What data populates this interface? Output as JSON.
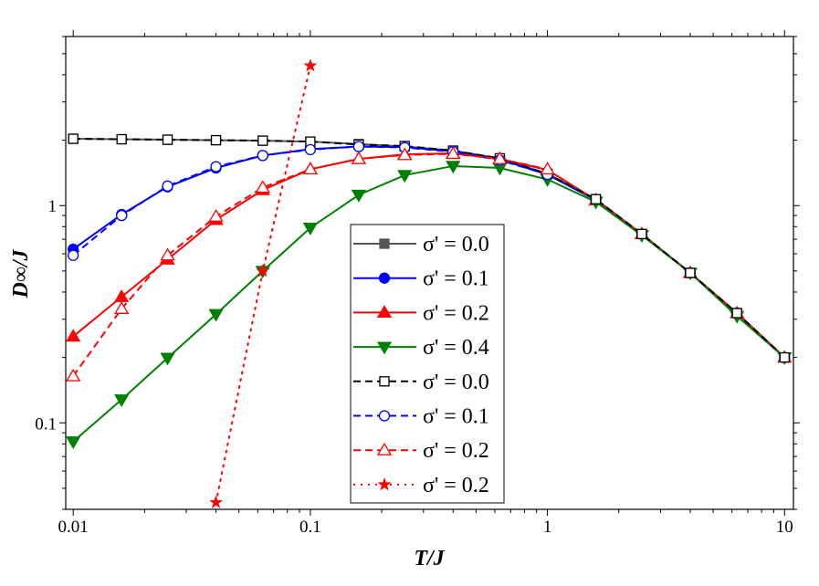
{
  "chart_data": {
    "type": "line",
    "title": "",
    "xlabel": "T/J",
    "ylabel": "D∞/J",
    "xscale": "log",
    "yscale": "log",
    "xlim": [
      0.0093,
      10.9
    ],
    "ylim": [
      0.04,
      6.0
    ],
    "xticks": [
      {
        "v": 0.01,
        "label": "0.01"
      },
      {
        "v": 0.1,
        "label": "0.1"
      },
      {
        "v": 1,
        "label": "1"
      },
      {
        "v": 10,
        "label": "10"
      }
    ],
    "yticks": [
      {
        "v": 0.1,
        "label": "0.1"
      },
      {
        "v": 1,
        "label": "1"
      }
    ],
    "grid": false,
    "legend_position": "center-bottom",
    "series": [
      {
        "name": "σ' = 0.0",
        "color": "#555555",
        "style": "solid",
        "marker": "square",
        "filled": true,
        "x": [
          0.01,
          0.016,
          0.025,
          0.04,
          0.063,
          0.1,
          0.16,
          0.25,
          0.4,
          0.63,
          1,
          1.6,
          2.5,
          4,
          6.3,
          10
        ],
        "y": [
          2.03,
          2.02,
          2.01,
          2.0,
          1.99,
          1.97,
          1.92,
          1.87,
          1.79,
          1.65,
          1.4,
          1.07,
          0.74,
          0.49,
          0.32,
          0.2
        ]
      },
      {
        "name": "σ' = 0.1",
        "color": "#0000ff",
        "style": "solid",
        "marker": "circle",
        "filled": true,
        "x": [
          0.01,
          0.016,
          0.025,
          0.04,
          0.063,
          0.1,
          0.16,
          0.25,
          0.4,
          0.63,
          1,
          1.6,
          2.5,
          4,
          6.3,
          10
        ],
        "y": [
          0.63,
          0.91,
          1.22,
          1.49,
          1.7,
          1.82,
          1.87,
          1.86,
          1.78,
          1.63,
          1.39,
          1.06,
          0.74,
          0.49,
          0.32,
          0.2
        ]
      },
      {
        "name": "σ' = 0.2",
        "color": "#ff0000",
        "style": "solid",
        "marker": "triangle-up",
        "filled": true,
        "x": [
          0.01,
          0.016,
          0.025,
          0.04,
          0.063,
          0.1,
          0.16,
          0.25,
          0.4,
          0.63,
          1,
          1.6,
          2.5,
          4,
          6.3,
          10
        ],
        "y": [
          0.25,
          0.38,
          0.565,
          0.86,
          1.18,
          1.47,
          1.64,
          1.72,
          1.74,
          1.64,
          1.46,
          1.06,
          0.74,
          0.49,
          0.32,
          0.2
        ]
      },
      {
        "name": "σ' = 0.4",
        "color": "#008000",
        "style": "solid",
        "marker": "triangle-down",
        "filled": true,
        "x": [
          0.01,
          0.016,
          0.025,
          0.04,
          0.063,
          0.1,
          0.16,
          0.25,
          0.4,
          0.63,
          1,
          1.6,
          2.5,
          4,
          6.3,
          10
        ],
        "y": [
          0.082,
          0.128,
          0.199,
          0.316,
          0.5,
          0.79,
          1.12,
          1.38,
          1.52,
          1.49,
          1.32,
          1.04,
          0.73,
          0.49,
          0.31,
          0.2
        ]
      },
      {
        "name": "σ' = 0.0",
        "color": "#000000",
        "style": "dashed",
        "marker": "square",
        "filled": false,
        "x": [
          0.01,
          0.016,
          0.025,
          0.04,
          0.063,
          0.1,
          0.16,
          0.25,
          0.4,
          0.63,
          1,
          1.6,
          2.5,
          4,
          6.3,
          10
        ],
        "y": [
          2.03,
          2.02,
          2.01,
          2.0,
          1.99,
          1.97,
          1.91,
          1.88,
          1.79,
          1.65,
          1.4,
          1.07,
          0.74,
          0.49,
          0.32,
          0.2
        ]
      },
      {
        "name": "σ' = 0.1",
        "color": "#0000ff",
        "style": "dashed",
        "marker": "circle",
        "filled": false,
        "x": [
          0.01,
          0.016,
          0.025,
          0.04,
          0.063,
          0.1,
          0.16,
          0.25,
          0.4,
          0.63,
          1
        ],
        "y": [
          0.59,
          0.9,
          1.23,
          1.51,
          1.7,
          1.81,
          1.87,
          1.85,
          1.77,
          1.62,
          1.39
        ]
      },
      {
        "name": "σ' = 0.2",
        "color": "#ff0000",
        "style": "dashed",
        "marker": "triangle-up",
        "filled": false,
        "x": [
          0.01,
          0.016,
          0.025,
          0.04,
          0.063,
          0.1,
          0.16,
          0.25,
          0.4,
          0.63,
          1
        ],
        "y": [
          0.164,
          0.335,
          0.59,
          0.89,
          1.21,
          1.47,
          1.64,
          1.71,
          1.73,
          1.64,
          1.47
        ]
      },
      {
        "name": "σ' = 0.2",
        "color": "#ff0000",
        "style": "dotted",
        "marker": "star",
        "filled": true,
        "x": [
          0.04,
          0.063,
          0.1
        ],
        "y": [
          0.043,
          0.5,
          4.4
        ]
      }
    ]
  }
}
